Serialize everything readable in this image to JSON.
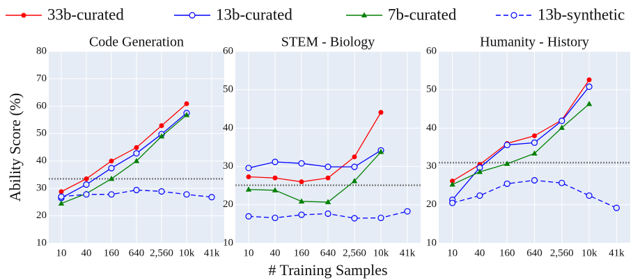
{
  "chart_data": [
    {
      "type": "line",
      "title": "Code Generation",
      "ylabel": "Ability Score (%)",
      "categories": [
        "10",
        "40",
        "160",
        "640",
        "2,560",
        "10k",
        "41k"
      ],
      "ylim": [
        10,
        80
      ],
      "yticks": [
        10,
        20,
        30,
        40,
        50,
        60,
        70,
        80
      ],
      "grid": true,
      "baseline": 33.5,
      "baseline_color": "#808080",
      "series": [
        {
          "name": "33b-curated",
          "color": "#ff0000",
          "marker": "filled-circle",
          "dash": false,
          "values": [
            28.8,
            33.5,
            40,
            44.9,
            52.9,
            60.9,
            null
          ]
        },
        {
          "name": "13b-curated",
          "color": "#0000ff",
          "marker": "open-circle",
          "dash": false,
          "values": [
            26.5,
            31.4,
            37.4,
            42.8,
            49.8,
            57.5,
            null
          ]
        },
        {
          "name": "7b-curated",
          "color": "#008000",
          "marker": "triangle",
          "dash": false,
          "values": [
            24.5,
            28.1,
            33.5,
            40,
            49,
            56.8,
            null
          ]
        },
        {
          "name": "13b-synthetic",
          "color": "#0000ff",
          "marker": "open-circle",
          "dash": true,
          "values": [
            27,
            27.8,
            27.8,
            29.4,
            28.9,
            27.8,
            26.8
          ]
        }
      ]
    },
    {
      "type": "line",
      "title": "STEM - Biology",
      "xlabel": "# Training Samples",
      "categories": [
        "10",
        "40",
        "160",
        "640",
        "2,560",
        "10k",
        "41k"
      ],
      "ylim": [
        10,
        60
      ],
      "yticks": [
        10,
        20,
        30,
        40,
        50,
        60
      ],
      "grid": true,
      "baseline": 25.1,
      "baseline_color": "#808080",
      "series": [
        {
          "color": "#ff0000",
          "marker": "filled-circle",
          "dash": false,
          "values": [
            27.3,
            27,
            26,
            27,
            32.5,
            44.1,
            null
          ]
        },
        {
          "color": "#0000ff",
          "marker": "open-circle",
          "dash": false,
          "values": [
            29.6,
            31.2,
            30.8,
            29.9,
            29.9,
            34.2,
            null
          ]
        },
        {
          "color": "#008000",
          "marker": "triangle",
          "dash": false,
          "values": [
            24,
            23.8,
            20.9,
            20.7,
            26.2,
            33.8,
            null
          ]
        },
        {
          "color": "#0000ff",
          "marker": "open-circle",
          "dash": true,
          "values": [
            17,
            16.6,
            17.4,
            17.7,
            16.5,
            16.6,
            18.3
          ]
        }
      ]
    },
    {
      "type": "line",
      "title": "Humanity - History",
      "categories": [
        "10",
        "40",
        "160",
        "640",
        "2,560",
        "10k",
        "41k"
      ],
      "ylim": [
        10,
        60
      ],
      "yticks": [
        10,
        20,
        30,
        40,
        50,
        60
      ],
      "grid": true,
      "baseline": 31,
      "baseline_color": "#808080",
      "series": [
        {
          "color": "#ff0000",
          "marker": "filled-circle",
          "dash": false,
          "values": [
            26.2,
            30.5,
            36,
            38,
            42.1,
            52.6,
            null
          ]
        },
        {
          "color": "#0000ff",
          "marker": "open-circle",
          "dash": false,
          "values": [
            21.3,
            29.7,
            35.6,
            36.2,
            41.9,
            50.8,
            null
          ]
        },
        {
          "color": "#008000",
          "marker": "triangle",
          "dash": false,
          "values": [
            25.3,
            28.6,
            30.7,
            33.4,
            40.1,
            46.3,
            null
          ]
        },
        {
          "color": "#0000ff",
          "marker": "open-circle",
          "dash": true,
          "values": [
            20.5,
            22.4,
            25.5,
            26.4,
            25.7,
            22.4,
            19.2
          ]
        }
      ]
    }
  ]
}
